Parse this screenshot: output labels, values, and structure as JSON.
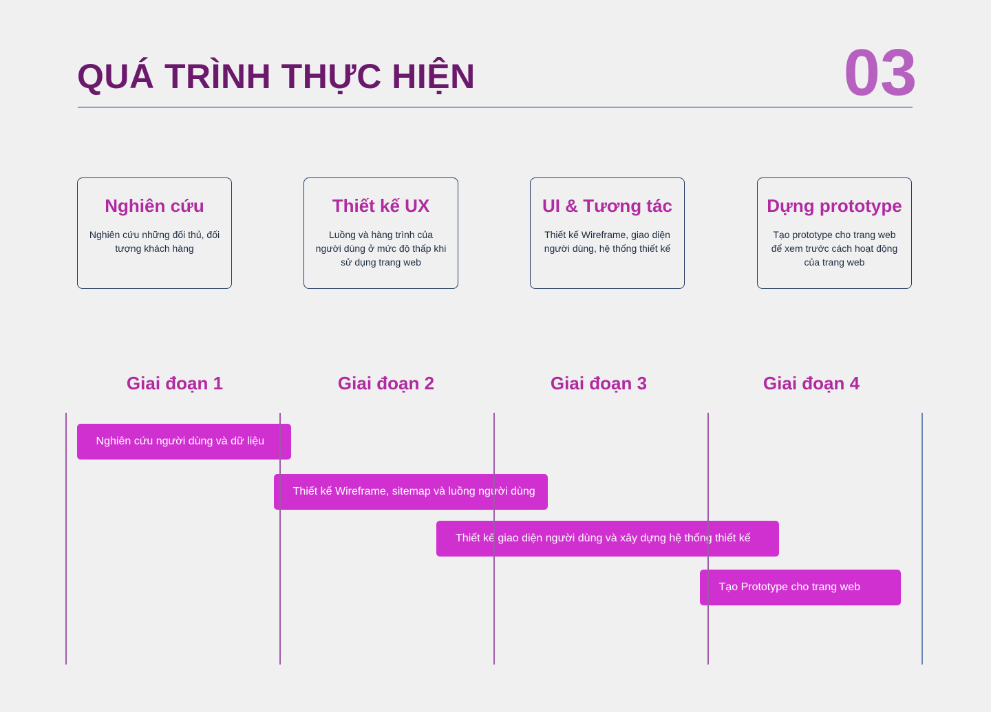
{
  "header": {
    "title": "QUÁ TRÌNH THỰC HIỆN",
    "section_number": "03"
  },
  "colors": {
    "title": "#6b1a6b",
    "section_number": "#b660c0",
    "accent": "#b02aa0",
    "bar": "#d030d0",
    "card_border": "#243c64",
    "phase_divider": "#a05aa8",
    "timeline_end": "#6a88b5",
    "background": "#f0f0f1"
  },
  "cards": [
    {
      "title": "Nghiên cứu",
      "desc": "Nghiên cứu những đối thủ, đối tượng khách hàng"
    },
    {
      "title": "Thiết kế UX",
      "desc": "Luồng và hàng trình của người dùng ở mức độ thấp khi sử dụng trang web"
    },
    {
      "title": "UI & Tương tác",
      "desc": "Thiết kế Wireframe, giao diện người dùng, hệ thống thiết kế"
    },
    {
      "title": "Dựng prototype",
      "desc": "Tạo prototype cho trang web để xem trước cách hoạt động của trang web"
    }
  ],
  "phases": [
    {
      "label": "Giai đoạn 1"
    },
    {
      "label": "Giai đoạn 2"
    },
    {
      "label": "Giai đoạn 3"
    },
    {
      "label": "Giai đoạn 4"
    }
  ],
  "tasks": [
    {
      "label": "Nghiên cứu người dùng và dữ liệu",
      "start_phase": 0.05,
      "end_phase": 1.05
    },
    {
      "label": "Thiết kế Wireframe, sitemap và luồng người dùng",
      "start_phase": 0.97,
      "end_phase": 2.25
    },
    {
      "label": "Thiết kế giao diện người dùng và xây dựng hệ thống thiết kế",
      "start_phase": 1.73,
      "end_phase": 3.33
    },
    {
      "label": "Tạo Prototype cho trang web",
      "start_phase": 2.96,
      "end_phase": 3.9
    }
  ]
}
